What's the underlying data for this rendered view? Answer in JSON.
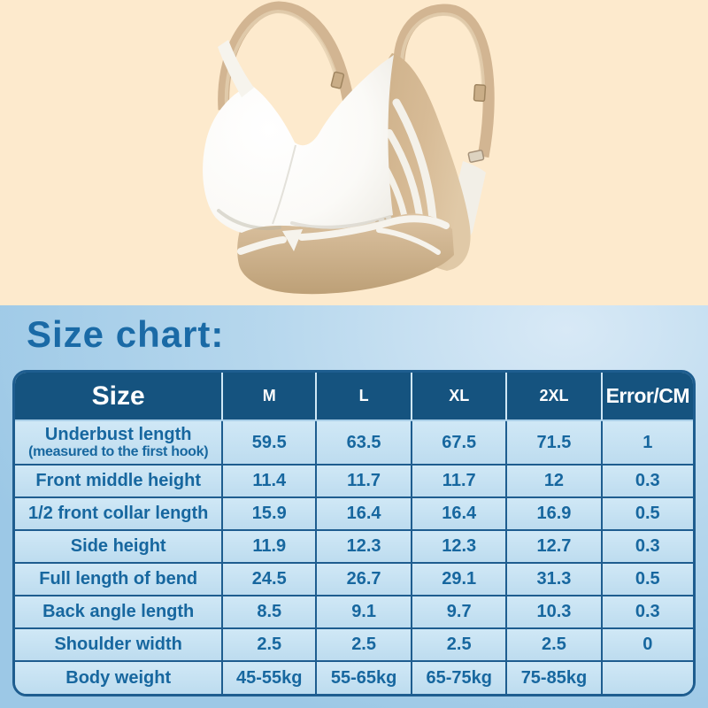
{
  "product": {
    "image_alt": "Side view of a seamless white wireless bra with a beige side panel decorated with white wing-shaped stripes, beige adjustable shoulder straps and a beige under-band with a small white triangle detail",
    "colors": {
      "background": "#fdeacd",
      "cup_white": "#ffffff",
      "strap_beige": "#d2b592",
      "panel_beige": "#d0b48e",
      "band_beige": "#c9ab84"
    }
  },
  "size_chart": {
    "title": "Size chart:",
    "colors": {
      "section_background": "#a9d0e9",
      "title_text": "#1a6aa6",
      "header_background": "#15537f",
      "header_text": "#ffffff",
      "cell_background": "#c6e1f2",
      "cell_text": "#17679f",
      "border": "#1e5d8f"
    },
    "columns": [
      "Size",
      "M",
      "L",
      "XL",
      "2XL",
      "Error/CM"
    ],
    "rows": [
      {
        "label": "Underbust length",
        "sublabel": "(measured to the first hook)",
        "values": [
          "59.5",
          "63.5",
          "67.5",
          "71.5",
          "1"
        ]
      },
      {
        "label": "Front middle height",
        "values": [
          "11.4",
          "11.7",
          "11.7",
          "12",
          "0.3"
        ]
      },
      {
        "label": "1/2 front collar length",
        "values": [
          "15.9",
          "16.4",
          "16.4",
          "16.9",
          "0.5"
        ]
      },
      {
        "label": "Side height",
        "values": [
          "11.9",
          "12.3",
          "12.3",
          "12.7",
          "0.3"
        ]
      },
      {
        "label": "Full length of bend",
        "values": [
          "24.5",
          "26.7",
          "29.1",
          "31.3",
          "0.5"
        ]
      },
      {
        "label": "Back angle length",
        "values": [
          "8.5",
          "9.1",
          "9.7",
          "10.3",
          "0.3"
        ]
      },
      {
        "label": "Shoulder width",
        "values": [
          "2.5",
          "2.5",
          "2.5",
          "2.5",
          "0"
        ]
      },
      {
        "label": "Body weight",
        "values": [
          "45-55kg",
          "55-65kg",
          "65-75kg",
          "75-85kg",
          ""
        ]
      }
    ]
  },
  "chart_data": {
    "type": "table",
    "title": "Size chart:",
    "columns": [
      "Size",
      "M",
      "L",
      "XL",
      "2XL",
      "Error/CM"
    ],
    "rows": [
      [
        "Underbust length (measured to the first hook)",
        "59.5",
        "63.5",
        "67.5",
        "71.5",
        "1"
      ],
      [
        "Front middle height",
        "11.4",
        "11.7",
        "11.7",
        "12",
        "0.3"
      ],
      [
        "1/2 front collar length",
        "15.9",
        "16.4",
        "16.4",
        "16.9",
        "0.5"
      ],
      [
        "Side height",
        "11.9",
        "12.3",
        "12.3",
        "12.7",
        "0.3"
      ],
      [
        "Full length of bend",
        "24.5",
        "26.7",
        "29.1",
        "31.3",
        "0.5"
      ],
      [
        "Back angle length",
        "8.5",
        "9.1",
        "9.7",
        "10.3",
        "0.3"
      ],
      [
        "Shoulder width",
        "2.5",
        "2.5",
        "2.5",
        "2.5",
        "0"
      ],
      [
        "Body weight",
        "45-55kg",
        "55-65kg",
        "65-75kg",
        "75-85kg",
        ""
      ]
    ],
    "units": "cm unless noted (body weight in kg)",
    "legend_position": "none",
    "grid": true
  }
}
